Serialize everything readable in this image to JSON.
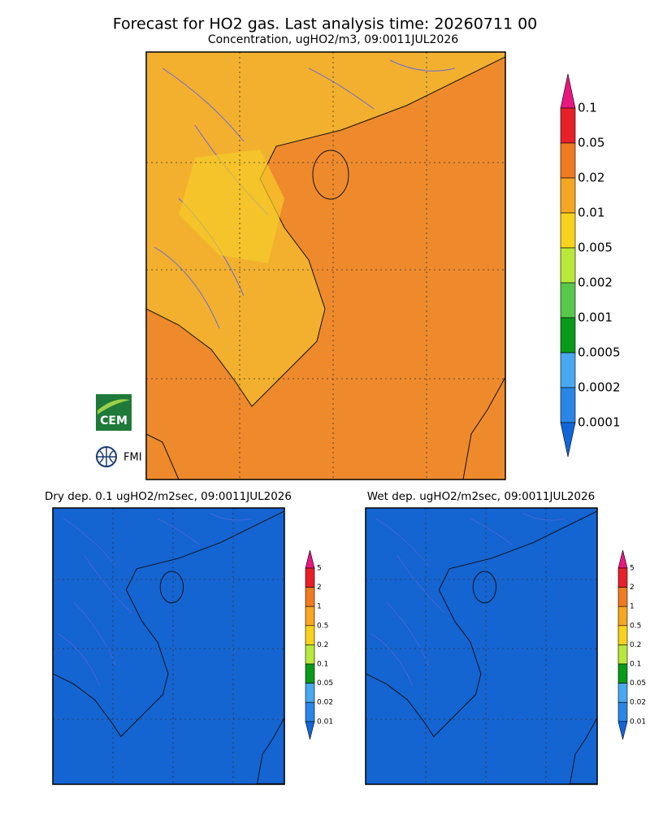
{
  "title": "Forecast for HO2 gas. Last analysis time: 20260711 00",
  "main_panel": {
    "subtitle": "Concentration, ugHO2/m3, 09:0011JUL2026",
    "legend": {
      "labels": [
        "0.1",
        "0.05",
        "0.02",
        "0.01",
        "0.005",
        "0.002",
        "0.001",
        "0.0005",
        "0.0002",
        "0.0001"
      ],
      "colors": [
        "#e8177e",
        "#e8202a",
        "#f07a22",
        "#f5a623",
        "#f8d21c",
        "#b8e83a",
        "#58c84a",
        "#0a9a1a",
        "#48a8f0",
        "#2a86e6",
        "#1366d8"
      ]
    }
  },
  "dry_panel": {
    "subtitle": "Dry dep. 0.1 ugHO2/m2sec, 09:0011JUL2026",
    "legend": {
      "labels": [
        "5",
        "2",
        "1",
        "0.5",
        "0.2",
        "0.1",
        "0.05",
        "0.02",
        "0.01"
      ],
      "colors": [
        "#e8177e",
        "#e8202a",
        "#f07a22",
        "#f5a623",
        "#f8d21c",
        "#b8e83a",
        "#0a9a1a",
        "#48a8f0",
        "#2a86e6",
        "#1366d8"
      ]
    }
  },
  "wet_panel": {
    "subtitle": "Wet dep. ugHO2/m2sec, 09:0011JUL2026",
    "legend": {
      "labels": [
        "5",
        "2",
        "1",
        "0.5",
        "0.2",
        "0.1",
        "0.05",
        "0.02",
        "0.01"
      ],
      "colors": [
        "#e8177e",
        "#e8202a",
        "#f07a22",
        "#f5a623",
        "#f8d21c",
        "#b8e83a",
        "#0a9a1a",
        "#48a8f0",
        "#2a86e6",
        "#1366d8"
      ]
    }
  },
  "logos": [
    "CEM",
    "FMI"
  ]
}
